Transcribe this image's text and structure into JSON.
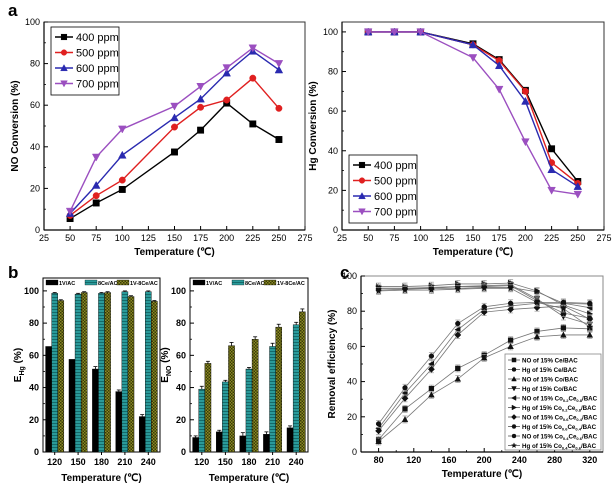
{
  "chart_data": [
    {
      "id": "a-left",
      "panel_label": "a",
      "type": "line",
      "xlabel": "Temperature (℃)",
      "ylabel": "NO Conversion (%)",
      "xlim": [
        25,
        275
      ],
      "ylim": [
        0,
        100
      ],
      "xticks": [
        25,
        50,
        75,
        100,
        125,
        150,
        175,
        200,
        225,
        250,
        275
      ],
      "yticks": [
        0,
        20,
        40,
        60,
        80,
        100
      ],
      "legend_position": "top-left",
      "x": [
        50,
        75,
        100,
        150,
        175,
        200,
        225,
        250
      ],
      "series": [
        {
          "name": "400 ppm",
          "color": "#000000",
          "marker": "square",
          "values": [
            5.5,
            13,
            19.5,
            37.5,
            48,
            61,
            51,
            43.5
          ]
        },
        {
          "name": "500 ppm",
          "color": "#e02020",
          "marker": "circle",
          "values": [
            7,
            16.5,
            24,
            49.5,
            59,
            62.5,
            73,
            58.5
          ]
        },
        {
          "name": "600 ppm",
          "color": "#2a2ab0",
          "marker": "triangle-up",
          "values": [
            8,
            21.5,
            36,
            54,
            63,
            75.5,
            86,
            77
          ]
        },
        {
          "name": "700 ppm",
          "color": "#9b4fc0",
          "marker": "triangle-down",
          "values": [
            9,
            35,
            48.5,
            59.5,
            69,
            78,
            87.5,
            80
          ]
        }
      ]
    },
    {
      "id": "a-right",
      "panel_label": "",
      "type": "line",
      "xlabel": "Temperature (℃)",
      "ylabel": "Hg Conversion (%)",
      "xlim": [
        25,
        275
      ],
      "ylim": [
        0,
        105
      ],
      "xticks": [
        25,
        50,
        75,
        100,
        125,
        150,
        175,
        200,
        225,
        250,
        275
      ],
      "yticks": [
        0,
        20,
        40,
        60,
        80,
        100
      ],
      "legend_position": "bottom-left",
      "x": [
        50,
        75,
        100,
        150,
        175,
        200,
        225,
        250
      ],
      "series": [
        {
          "name": "400 ppm",
          "color": "#000000",
          "marker": "square",
          "values": [
            100,
            100,
            100,
            94,
            86,
            70.5,
            41,
            24.5
          ]
        },
        {
          "name": "500 ppm",
          "color": "#e02020",
          "marker": "circle",
          "values": [
            100,
            100,
            100,
            93.5,
            85.5,
            70,
            34,
            23.5
          ]
        },
        {
          "name": "600 ppm",
          "color": "#2a2ab0",
          "marker": "triangle-up",
          "values": [
            100,
            100,
            100,
            93.5,
            83,
            65,
            30.5,
            22
          ]
        },
        {
          "name": "700 ppm",
          "color": "#9b4fc0",
          "marker": "triangle-down",
          "values": [
            100,
            100,
            100,
            87,
            71,
            44.5,
            20,
            18
          ]
        }
      ]
    },
    {
      "id": "b-left",
      "panel_label": "b",
      "type": "bar",
      "xlabel": "Temperature (℃)",
      "ylabel": "E",
      "ylabel_sub": "Hg",
      "ylabel_suffix": " (%)",
      "ylim": [
        0,
        108
      ],
      "yticks": [
        0,
        20,
        40,
        60,
        80,
        100
      ],
      "legend_position": "top",
      "categories": [
        "120",
        "150",
        "180",
        "210",
        "240"
      ],
      "series": [
        {
          "name": "1V/AC",
          "color": "#000000",
          "values": [
            65.5,
            57.5,
            51.5,
            37.5,
            22
          ],
          "errors": [
            0,
            0,
            1.5,
            1,
            1.2
          ]
        },
        {
          "name": "8Ce/AC",
          "color": "#2a9a9a",
          "values": [
            98.5,
            98,
            98.5,
            99.5,
            99.5
          ],
          "errors": [
            0.5,
            0.5,
            0.5,
            0.5,
            0.5
          ]
        },
        {
          "name": "1V-8Ce/AC",
          "color": "#7a7a20",
          "values": [
            94,
            99,
            99,
            96.5,
            93.5
          ],
          "errors": [
            0.5,
            0.5,
            0.5,
            0.5,
            0.5
          ]
        }
      ]
    },
    {
      "id": "b-right",
      "panel_label": "",
      "type": "bar",
      "xlabel": "Temperature (℃)",
      "ylabel": "E",
      "ylabel_sub": "NO",
      "ylabel_suffix": " (%)",
      "ylim": [
        0,
        108
      ],
      "yticks": [
        0,
        20,
        40,
        60,
        80,
        100
      ],
      "legend_position": "top",
      "categories": [
        "120",
        "150",
        "180",
        "210",
        "240"
      ],
      "series": [
        {
          "name": "1V/AC",
          "color": "#000000",
          "values": [
            9,
            12.5,
            10,
            11,
            15
          ],
          "errors": [
            1,
            1,
            2,
            1.5,
            1.2
          ]
        },
        {
          "name": "8Ce/AC",
          "color": "#2a9a9a",
          "values": [
            39,
            43.5,
            51.5,
            65.5,
            79
          ],
          "errors": [
            1.8,
            1,
            1,
            2,
            1.5
          ]
        },
        {
          "name": "1V-8Ce/AC",
          "color": "#7a7a20",
          "values": [
            55,
            66,
            70,
            77.5,
            87
          ],
          "errors": [
            1.3,
            2,
            1.5,
            1.8,
            1.8
          ]
        }
      ]
    },
    {
      "id": "c",
      "panel_label": "c",
      "type": "line",
      "xlabel": "Temperature (℃)",
      "ylabel": "Removal efficiency (%)",
      "xlim": [
        60,
        335
      ],
      "ylim": [
        0,
        100
      ],
      "xticks": [
        80,
        120,
        160,
        200,
        240,
        280,
        320
      ],
      "yticks": [
        0,
        20,
        40,
        60,
        80,
        100
      ],
      "legend_position": "bottom-right",
      "x": [
        80,
        110,
        140,
        170,
        200,
        230,
        260,
        290,
        320
      ],
      "series": [
        {
          "name": "NO of 15% Ce/BAC",
          "label_parts": [
            "NO of 15% Ce/BAC"
          ],
          "marker": "square",
          "values": [
            7,
            24.5,
            36,
            47.5,
            55,
            63.5,
            68.5,
            70.5,
            70
          ]
        },
        {
          "name": "Hg of 15% Ce/BAC",
          "label_parts": [
            "Hg of 15% Ce/BAC"
          ],
          "marker": "circle",
          "values": [
            92,
            92.5,
            93,
            93,
            93.5,
            93.5,
            91,
            84.5,
            84
          ]
        },
        {
          "name": "NO of 15% Co/BAC",
          "label_parts": [
            "NO of 15% Co/BAC"
          ],
          "marker": "triangle-up",
          "values": [
            6,
            18.5,
            32.5,
            41.5,
            53.5,
            60,
            65.5,
            66.5,
            66.5
          ]
        },
        {
          "name": "Hg of 15% Co/BAC",
          "label_parts": [
            "Hg of 15% Co/BAC"
          ],
          "marker": "triangle-down",
          "values": [
            93,
            93,
            93.5,
            94,
            94.5,
            95,
            87,
            77,
            72.5
          ]
        },
        {
          "name": "NO of 15% Co0.2Ce0.8/BAC",
          "label_parts": [
            "NO of 15% Co",
            "0.2",
            "Ce",
            "0.8",
            "/BAC"
          ],
          "marker": "triangle-left",
          "values": [
            13.5,
            33.5,
            50,
            69.5,
            81,
            83,
            84.5,
            84.5,
            82
          ]
        },
        {
          "name": "Hg of 15% Co0.2Ce0.8/BAC",
          "label_parts": [
            "Hg of 15% Co",
            "0.2",
            "Ce",
            "0.8",
            "/BAC"
          ],
          "marker": "triangle-right",
          "values": [
            94,
            94,
            94.5,
            95.5,
            95.5,
            96,
            91.5,
            83.5,
            78.5
          ]
        },
        {
          "name": "NO of 15% Co0.6Ce0.4/BAC",
          "label_parts": [
            "NO of 15% Co",
            "0.6",
            "Ce",
            "0.4",
            "/BAC"
          ],
          "marker": "diamond",
          "values": [
            12,
            30.5,
            47,
            66.5,
            79.5,
            81,
            82,
            83,
            75.5
          ]
        },
        {
          "name": "Hg of 15% Co0.6Ce0.4/BAC",
          "label_parts": [
            "Hg of 15% Co",
            "0.6",
            "Ce",
            "0.4",
            "/BAC"
          ],
          "marker": "hexagon",
          "values": [
            93,
            93,
            93,
            94,
            94,
            94.5,
            86,
            79,
            76
          ]
        },
        {
          "name": "NO of 15% Co0.4Ce0.6/BAC",
          "label_parts": [
            "NO of 15% Co",
            "0.4",
            "Ce",
            "0.6",
            "/BAC"
          ],
          "marker": "circle",
          "values": [
            16,
            36.5,
            54.5,
            73,
            82.5,
            84.5,
            85,
            85,
            84.5
          ]
        },
        {
          "name": "Hg of 15% Co0.4Ce0.6/BAC",
          "label_parts": [
            "Hg of 15% Co",
            "0.4",
            "Ce",
            "0.6",
            "/BAC"
          ],
          "marker": "star",
          "values": [
            91.5,
            92,
            92,
            92.5,
            93,
            93,
            85,
            81.5,
            71
          ]
        }
      ]
    }
  ]
}
